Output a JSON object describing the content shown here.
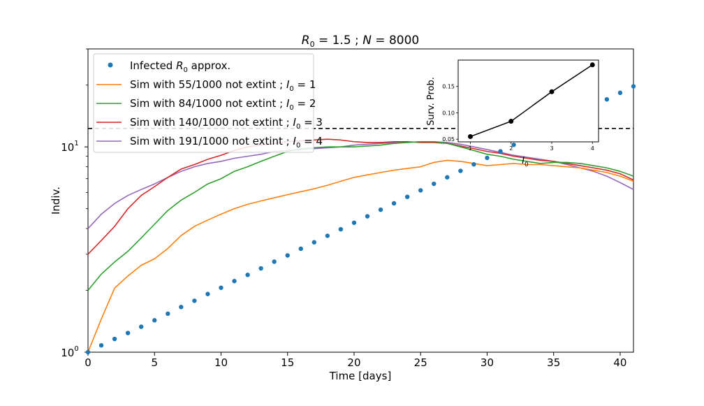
{
  "chart_data": [
    {
      "type": "line",
      "title": "R0 = 1.5 ; N = 8000",
      "title_parts": {
        "r": "R",
        "r_sub": "0",
        "r_val": " = 1.5 ; ",
        "n": "N",
        "n_val": " = 8000"
      },
      "xlabel": "Time [days]",
      "ylabel": "Indiv.",
      "xlim": [
        0,
        41
      ],
      "ylim": [
        1,
        30
      ],
      "y_scale": "log",
      "x_ticks": [
        0,
        5,
        10,
        15,
        20,
        25,
        30,
        35,
        40
      ],
      "x_tick_labels": [
        "0",
        "5",
        "10",
        "15",
        "20",
        "25",
        "30",
        "35",
        "40"
      ],
      "y_tick_labels": {
        "ten": "10",
        "exp0": "0",
        "exp1": "1"
      },
      "threshold_y": 12.3,
      "threshold_style": "dashed black",
      "legend_position": "upper-left",
      "series": [
        {
          "name": "Infected R0 approx.",
          "label_parts": [
            "Infected ",
            "R",
            "0",
            " approx."
          ],
          "kind": "scatter",
          "color": "#1f77b4",
          "x": [
            0,
            1,
            2,
            3,
            4,
            5,
            6,
            7,
            8,
            9,
            10,
            11,
            12,
            13,
            14,
            15,
            16,
            17,
            18,
            19,
            20,
            21,
            22,
            23,
            24,
            25,
            26,
            27,
            28,
            29,
            30,
            31,
            32,
            33,
            34,
            35,
            36,
            37,
            38,
            39,
            40,
            41
          ],
          "values": [
            1.0,
            1.08,
            1.16,
            1.24,
            1.33,
            1.43,
            1.54,
            1.66,
            1.78,
            1.92,
            2.06,
            2.22,
            2.38,
            2.56,
            2.76,
            2.96,
            3.19,
            3.43,
            3.69,
            3.97,
            4.27,
            4.59,
            4.94,
            5.31,
            5.71,
            6.14,
            6.61,
            7.11,
            7.64,
            8.22,
            8.84,
            9.51,
            10.23,
            11.0,
            11.83,
            12.73,
            13.69,
            14.73,
            15.84,
            17.04,
            18.33,
            19.72
          ]
        },
        {
          "name": "Sim with 55/1000 not extint ; I0 = 1",
          "label_parts": [
            "Sim with 55/1000 not extint ; ",
            "I",
            "0",
            " = 1"
          ],
          "kind": "line",
          "color": "#ff7f0e",
          "x": [
            0,
            1,
            2,
            3,
            4,
            5,
            6,
            7,
            8,
            9,
            10,
            11,
            12,
            13,
            14,
            15,
            16,
            17,
            18,
            19,
            20,
            21,
            22,
            23,
            24,
            25,
            26,
            27,
            28,
            29,
            30,
            31,
            32,
            33,
            34,
            35,
            36,
            37,
            38,
            39,
            40,
            41
          ],
          "values": [
            1.0,
            1.45,
            2.05,
            2.35,
            2.65,
            2.85,
            3.2,
            3.7,
            4.1,
            4.4,
            4.7,
            5.0,
            5.25,
            5.45,
            5.65,
            5.85,
            6.05,
            6.25,
            6.5,
            6.8,
            7.1,
            7.3,
            7.5,
            7.7,
            7.85,
            8.0,
            8.4,
            8.6,
            8.5,
            8.3,
            8.1,
            8.2,
            8.3,
            8.2,
            8.2,
            8.1,
            8.0,
            7.9,
            7.7,
            7.5,
            7.2,
            6.8
          ]
        },
        {
          "name": "Sim with 84/1000 not extint ; I0 = 2",
          "label_parts": [
            "Sim with 84/1000 not extint ; ",
            "I",
            "0",
            " = 2"
          ],
          "kind": "line",
          "color": "#2ca02c",
          "x": [
            0,
            1,
            2,
            3,
            4,
            5,
            6,
            7,
            8,
            9,
            10,
            11,
            12,
            13,
            14,
            15,
            16,
            17,
            18,
            19,
            20,
            21,
            22,
            23,
            24,
            25,
            26,
            27,
            28,
            29,
            30,
            31,
            32,
            33,
            34,
            35,
            36,
            37,
            38,
            39,
            40,
            41
          ],
          "values": [
            2.0,
            2.4,
            2.75,
            3.1,
            3.6,
            4.2,
            4.9,
            5.5,
            6.0,
            6.6,
            7.0,
            7.6,
            8.0,
            8.5,
            9.0,
            9.5,
            9.8,
            9.9,
            10.0,
            10.0,
            10.0,
            10.1,
            10.2,
            10.4,
            10.5,
            10.6,
            10.6,
            10.4,
            10.0,
            9.6,
            9.2,
            9.0,
            8.7,
            8.5,
            8.3,
            8.4,
            8.4,
            8.3,
            8.1,
            7.9,
            7.6,
            7.2
          ]
        },
        {
          "name": "Sim with 140/1000 not extint ; I0 = 3",
          "label_parts": [
            "Sim with 140/1000 not extint ; ",
            "I",
            "0",
            " = 3"
          ],
          "kind": "line",
          "color": "#d62728",
          "x": [
            0,
            1,
            2,
            3,
            4,
            5,
            6,
            7,
            8,
            9,
            10,
            11,
            12,
            13,
            14,
            15,
            16,
            17,
            18,
            19,
            20,
            21,
            22,
            23,
            24,
            25,
            26,
            27,
            28,
            29,
            30,
            31,
            32,
            33,
            34,
            35,
            36,
            37,
            38,
            39,
            40,
            41
          ],
          "values": [
            3.0,
            3.5,
            4.1,
            5.0,
            5.8,
            6.4,
            7.1,
            7.8,
            8.2,
            8.7,
            9.1,
            9.6,
            10.0,
            10.2,
            10.4,
            10.6,
            10.7,
            10.8,
            10.9,
            10.8,
            10.6,
            10.5,
            10.5,
            10.6,
            10.6,
            10.5,
            10.5,
            10.4,
            10.1,
            9.8,
            9.5,
            9.3,
            9.0,
            8.8,
            8.6,
            8.5,
            8.3,
            8.1,
            7.9,
            7.7,
            7.4,
            6.9
          ]
        },
        {
          "name": "Sim with 191/1000 not extint ; I0 = 4",
          "label_parts": [
            "Sim with 191/1000 not extint ; ",
            "I",
            "0",
            " = 4"
          ],
          "kind": "line",
          "color": "#9467bd",
          "x": [
            0,
            1,
            2,
            3,
            4,
            5,
            6,
            7,
            8,
            9,
            10,
            11,
            12,
            13,
            14,
            15,
            16,
            17,
            18,
            19,
            20,
            21,
            22,
            23,
            24,
            25,
            26,
            27,
            28,
            29,
            30,
            31,
            32,
            33,
            34,
            35,
            36,
            37,
            38,
            39,
            40,
            41
          ],
          "values": [
            4.0,
            4.7,
            5.3,
            5.8,
            6.2,
            6.6,
            7.1,
            7.6,
            8.0,
            8.3,
            8.5,
            8.8,
            9.0,
            9.2,
            9.5,
            9.6,
            9.7,
            9.8,
            9.9,
            10.0,
            10.2,
            10.3,
            10.4,
            10.5,
            10.5,
            10.6,
            10.6,
            10.5,
            10.3,
            10.0,
            9.7,
            9.4,
            9.1,
            8.9,
            8.7,
            8.5,
            8.2,
            7.9,
            7.6,
            7.2,
            6.7,
            6.2
          ]
        }
      ]
    },
    {
      "type": "line",
      "inset": true,
      "xlabel": "I0",
      "xlabel_parts": [
        "I",
        "0"
      ],
      "ylabel": "Surv. Prob.",
      "x": [
        1,
        2,
        3,
        4
      ],
      "values": [
        0.055,
        0.084,
        0.14,
        0.191
      ],
      "xlim": [
        0.7,
        4.15
      ],
      "ylim": [
        0.045,
        0.2
      ],
      "x_ticks": [
        1,
        2,
        3,
        4
      ],
      "x_tick_labels": [
        "1",
        "2",
        "3",
        "4"
      ],
      "y_ticks": [
        0.05,
        0.1,
        0.15
      ],
      "y_tick_labels": [
        "0.05",
        "0.10",
        "0.15"
      ],
      "color": "#000000"
    }
  ]
}
